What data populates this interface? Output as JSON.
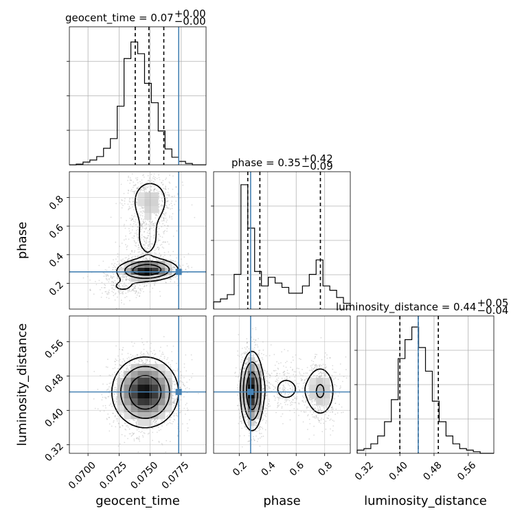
{
  "chart_data": {
    "type": "corner",
    "parameters": [
      "geocent_time",
      "phase",
      "luminosity_distance"
    ],
    "truth": {
      "geocent_time": 0.0773,
      "phase": 0.28,
      "luminosity_distance": 0.443
    },
    "titles": [
      {
        "param": "geocent_time",
        "text": "geocent_time = 0.07",
        "plus": "+0.00",
        "minus": "−0.00"
      },
      {
        "param": "phase",
        "text": "phase = 0.35",
        "plus": "+0.42",
        "minus": "−0.09"
      },
      {
        "param": "luminosity_distance",
        "text": "luminosity_distance = 0.44",
        "plus": "+0.05",
        "minus": "−0.04"
      }
    ],
    "axes": {
      "geocent_time": {
        "range": [
          0.0685,
          0.0795
        ],
        "ticks": [
          0.07,
          0.0725,
          0.075,
          0.0775
        ],
        "tick_labels": [
          "0.0700",
          "0.0725",
          "0.0750",
          "0.0775"
        ],
        "label": "geocent_time"
      },
      "phase": {
        "range": [
          0.02,
          0.98
        ],
        "ticks": [
          0.2,
          0.4,
          0.6,
          0.8
        ],
        "tick_labels": [
          "0.2",
          "0.4",
          "0.6",
          "0.8"
        ],
        "label": "phase"
      },
      "luminosity_distance": {
        "range": [
          0.3,
          0.62
        ],
        "ticks": [
          0.32,
          0.4,
          0.48,
          0.56
        ],
        "tick_labels": [
          "0.32",
          "0.40",
          "0.48",
          "0.56"
        ],
        "label": "luminosity_distance"
      }
    },
    "histograms": {
      "geocent_time": {
        "edges": [
          0.0685,
          0.06905,
          0.0696,
          0.07015,
          0.0707,
          0.07125,
          0.0718,
          0.07235,
          0.0729,
          0.07345,
          0.074,
          0.07455,
          0.0751,
          0.07565,
          0.0762,
          0.07675,
          0.0773,
          0.07785,
          0.0784,
          0.07895,
          0.0795
        ],
        "counts": [
          0,
          1,
          4,
          7,
          12,
          24,
          38,
          85,
          154,
          178,
          161,
          118,
          90,
          49,
          23,
          11,
          5,
          2,
          0,
          0
        ],
        "quantiles": [
          0.0738,
          0.0749,
          0.0761
        ],
        "ymax": 200
      },
      "phase": {
        "edges": [
          0.02,
          0.068,
          0.116,
          0.164,
          0.212,
          0.26,
          0.308,
          0.356,
          0.404,
          0.452,
          0.5,
          0.548,
          0.596,
          0.644,
          0.692,
          0.74,
          0.788,
          0.836,
          0.884,
          0.932,
          0.98
        ],
        "counts": [
          5,
          7,
          10,
          24,
          86,
          56,
          26,
          16,
          22,
          18,
          15,
          11,
          11,
          16,
          24,
          34,
          16,
          13,
          8,
          4
        ],
        "quantiles": [
          0.26,
          0.345,
          0.77
        ],
        "ymax": 95
      },
      "luminosity_distance": {
        "edges": [
          0.3,
          0.316,
          0.332,
          0.348,
          0.364,
          0.38,
          0.396,
          0.412,
          0.428,
          0.444,
          0.46,
          0.476,
          0.492,
          0.508,
          0.524,
          0.54,
          0.556,
          0.572,
          0.588,
          0.604,
          0.62
        ],
        "counts": [
          2,
          3,
          6,
          11,
          20,
          34,
          60,
          72,
          80,
          67,
          52,
          33,
          20,
          11,
          6,
          3,
          2,
          1,
          0,
          0
        ],
        "quantiles": [
          0.4,
          0.443,
          0.49
        ],
        "ymax": 87
      }
    },
    "pairs": [
      {
        "x": "geocent_time",
        "y": "phase",
        "blobs": [
          {
            "cx": 0.0745,
            "cy": 0.29,
            "sx": 0.0011,
            "sy": 0.035,
            "w": 1.0
          },
          {
            "cx": 0.07525,
            "cy": 0.3,
            "sx": 0.0012,
            "sy": 0.04,
            "w": 0.55
          },
          {
            "cx": 0.075,
            "cy": 0.78,
            "sx": 0.0009,
            "sy": 0.09,
            "w": 0.42
          },
          {
            "cx": 0.0748,
            "cy": 0.52,
            "sx": 0.0008,
            "sy": 0.12,
            "w": 0.25
          },
          {
            "cx": 0.0728,
            "cy": 0.18,
            "sx": 0.0012,
            "sy": 0.05,
            "w": 0.2
          }
        ]
      },
      {
        "x": "geocent_time",
        "y": "luminosity_distance",
        "blobs": [
          {
            "cx": 0.0746,
            "cy": 0.442,
            "sx": 0.0013,
            "sy": 0.04,
            "w": 1.0
          }
        ]
      },
      {
        "x": "phase",
        "y": "luminosity_distance",
        "blobs": [
          {
            "cx": 0.29,
            "cy": 0.445,
            "sx": 0.04,
            "sy": 0.045,
            "w": 1.0
          },
          {
            "cx": 0.77,
            "cy": 0.445,
            "sx": 0.06,
            "sy": 0.035,
            "w": 0.35
          },
          {
            "cx": 0.53,
            "cy": 0.45,
            "sx": 0.09,
            "sy": 0.03,
            "w": 0.15
          }
        ]
      }
    ],
    "grid": true,
    "colors": {
      "truth": "#4682b4",
      "contour": "#000000",
      "points": "#9a9a9a",
      "grid": "#b0b0b0"
    }
  }
}
